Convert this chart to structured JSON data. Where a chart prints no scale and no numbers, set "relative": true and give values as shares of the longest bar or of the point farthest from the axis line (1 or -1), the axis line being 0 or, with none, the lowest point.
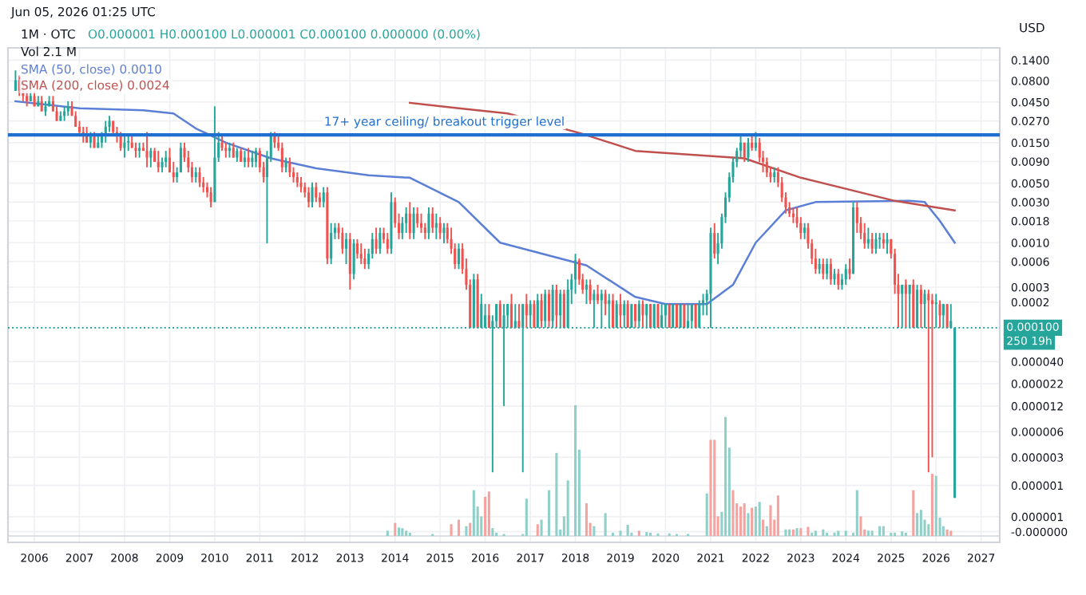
{
  "chart_data": [
    {
      "type": "candlestick",
      "title": "1M · OTC",
      "ylabel": "USD",
      "log": true,
      "grid": true,
      "legend": "top left",
      "annotations": [
        "O0.000001 H0.000100 L0.000001 C0.000100 0.000000 (0.00%)",
        "Jun 05, 2026 01:25 UTC",
        "250 19h",
        "Vol 2.1 M"
      ],
      "xlim": [
        "2005-06",
        "2027-06"
      ],
      "xticks": [
        "2006",
        "2007",
        "2008",
        "2009",
        "2010",
        "2011",
        "2012",
        "2013",
        "2014",
        "2015",
        "2016",
        "2017",
        "2018",
        "2019",
        "2020",
        "2021",
        "2022",
        "2023",
        "2024",
        "2025",
        "2026",
        "2027"
      ],
      "ylim": [
        3e-07,
        0.195
      ],
      "yticks": [
        {
          "value": 0.14,
          "label": "0.1400"
        },
        {
          "value": 0.08,
          "label": "0.0800"
        },
        {
          "value": 0.045,
          "label": "0.0450"
        },
        {
          "value": 0.027,
          "label": "0.0270"
        },
        {
          "value": 0.015,
          "label": "0.0150"
        },
        {
          "value": 0.009,
          "label": "0.0090"
        },
        {
          "value": 0.005,
          "label": "0.0050"
        },
        {
          "value": 0.003,
          "label": "0.0030"
        },
        {
          "value": 0.0018,
          "label": "0.0018"
        },
        {
          "value": 0.001,
          "label": "0.0010"
        },
        {
          "value": 0.0006,
          "label": "0.0006"
        },
        {
          "value": 0.0003,
          "label": "0.0003"
        },
        {
          "value": 0.0002,
          "label": "0.0002"
        },
        {
          "value": 4e-05,
          "label": "0.000040"
        },
        {
          "value": 2.2e-05,
          "label": "0.000022"
        },
        {
          "value": 1.2e-05,
          "label": "0.000012"
        },
        {
          "value": 6e-06,
          "label": "0.000006"
        },
        {
          "value": 3e-06,
          "label": "0.000003"
        },
        {
          "value": 1.4e-06,
          "label": "0.000001"
        },
        {
          "value": 6e-07,
          "label": "0.000001"
        },
        {
          "value": 4e-07,
          "label": "-0.000000"
        }
      ],
      "ref_lines": [
        {
          "axis": "y",
          "value": 0.0185,
          "label": "17+ year ceiling/ breakout trigger level",
          "color": "#1e6fd0",
          "line_style": "solid"
        },
        {
          "axis": "y",
          "value": 0.0001,
          "label": "0.000100",
          "color": "#26a69a",
          "line_style": "dotted"
        }
      ],
      "x": [
        "2005-08",
        "2005-09",
        "2005-10",
        "2005-11",
        "2005-12",
        "2006-01",
        "2006-02",
        "2006-03",
        "2006-04",
        "2006-05",
        "2006-06",
        "2006-07",
        "2006-08",
        "2006-09",
        "2006-10",
        "2006-11",
        "2006-12",
        "2007-01",
        "2007-02",
        "2007-03",
        "2007-04",
        "2007-05",
        "2007-06",
        "2007-07",
        "2007-08",
        "2007-09",
        "2007-10",
        "2007-11",
        "2007-12",
        "2008-01",
        "2008-02",
        "2008-03",
        "2008-04",
        "2008-05",
        "2008-06",
        "2008-07",
        "2008-08",
        "2008-09",
        "2008-10",
        "2008-11",
        "2008-12",
        "2009-01",
        "2009-02",
        "2009-03",
        "2009-04",
        "2009-05",
        "2009-06",
        "2009-07",
        "2009-08",
        "2009-09",
        "2009-10",
        "2009-11",
        "2009-12",
        "2010-01",
        "2010-02",
        "2010-03",
        "2010-04",
        "2010-05",
        "2010-06",
        "2010-07",
        "2010-08",
        "2010-09",
        "2010-10",
        "2010-11",
        "2010-12",
        "2011-01",
        "2011-02",
        "2011-03",
        "2011-04",
        "2011-05",
        "2011-06",
        "2011-07",
        "2011-08",
        "2011-09",
        "2011-10",
        "2011-11",
        "2011-12",
        "2012-01",
        "2012-02",
        "2012-03",
        "2012-04",
        "2012-05",
        "2012-06",
        "2012-07",
        "2012-08",
        "2012-09",
        "2012-10",
        "2012-11",
        "2012-12",
        "2013-01",
        "2013-02",
        "2013-03",
        "2013-04",
        "2013-05",
        "2013-06",
        "2013-07",
        "2013-08",
        "2013-09",
        "2013-10",
        "2013-11",
        "2013-12",
        "2014-01",
        "2014-02",
        "2014-03",
        "2014-04",
        "2014-05",
        "2014-06",
        "2014-07",
        "2014-08",
        "2014-09",
        "2014-10",
        "2014-11",
        "2014-12",
        "2015-01",
        "2015-02",
        "2015-03",
        "2015-04",
        "2015-05",
        "2015-06",
        "2015-07",
        "2015-08",
        "2015-09",
        "2015-10",
        "2015-11",
        "2015-12",
        "2016-01",
        "2016-02",
        "2016-03",
        "2016-04",
        "2016-05",
        "2016-06",
        "2016-07",
        "2016-08",
        "2016-09",
        "2016-10",
        "2016-11",
        "2016-12",
        "2017-01",
        "2017-02",
        "2017-03",
        "2017-04",
        "2017-05",
        "2017-06",
        "2017-07",
        "2017-08",
        "2017-09",
        "2017-10",
        "2017-11",
        "2017-12",
        "2018-01",
        "2018-02",
        "2018-03",
        "2018-04",
        "2018-05",
        "2018-06",
        "2018-07",
        "2018-08",
        "2018-09",
        "2018-10",
        "2018-11",
        "2018-12",
        "2019-01",
        "2019-02",
        "2019-03",
        "2019-04",
        "2019-05",
        "2019-06",
        "2019-07",
        "2019-08",
        "2019-09",
        "2019-10",
        "2019-11",
        "2019-12",
        "2020-01",
        "2020-02",
        "2020-03",
        "2020-04",
        "2020-05",
        "2020-06",
        "2020-07",
        "2020-08",
        "2020-09",
        "2020-10",
        "2020-11",
        "2020-12",
        "2021-01",
        "2021-02",
        "2021-03",
        "2021-04",
        "2021-05",
        "2021-06",
        "2021-07",
        "2021-08",
        "2021-09",
        "2021-10",
        "2021-11",
        "2021-12",
        "2022-01",
        "2022-02",
        "2022-03",
        "2022-04",
        "2022-05",
        "2022-06",
        "2022-07",
        "2022-08",
        "2022-09",
        "2022-10",
        "2022-11",
        "2022-12",
        "2023-01",
        "2023-02",
        "2023-03",
        "2023-04",
        "2023-05",
        "2023-06",
        "2023-07",
        "2023-08",
        "2023-09",
        "2023-10",
        "2023-11",
        "2023-12",
        "2024-01",
        "2024-02",
        "2024-03",
        "2024-04",
        "2024-05",
        "2024-06",
        "2024-07",
        "2024-08",
        "2024-09",
        "2024-10",
        "2024-11",
        "2024-12",
        "2025-01",
        "2025-02",
        "2025-03",
        "2025-04",
        "2025-05",
        "2025-06",
        "2025-07",
        "2025-08",
        "2025-09",
        "2025-10",
        "2025-11",
        "2025-12",
        "2026-01",
        "2026-02",
        "2026-03",
        "2026-04",
        "2026-05",
        "2026-06"
      ],
      "ohlc": [
        [
          0.061,
          0.106,
          0.061,
          0.081
        ],
        [
          0.081,
          0.092,
          0.053,
          0.061
        ],
        [
          0.061,
          0.081,
          0.046,
          0.053
        ],
        [
          0.053,
          0.061,
          0.04,
          0.046
        ],
        [
          0.046,
          0.061,
          0.046,
          0.053
        ],
        [
          0.053,
          0.061,
          0.04,
          0.04
        ],
        [
          0.04,
          0.053,
          0.04,
          0.046
        ],
        [
          0.046,
          0.053,
          0.035,
          0.035
        ],
        [
          0.035,
          0.046,
          0.031,
          0.04
        ],
        [
          0.04,
          0.053,
          0.04,
          0.046
        ],
        [
          0.046,
          0.053,
          0.035,
          0.035
        ],
        [
          0.035,
          0.04,
          0.027,
          0.027
        ],
        [
          0.027,
          0.035,
          0.027,
          0.031
        ],
        [
          0.031,
          0.04,
          0.027,
          0.035
        ],
        [
          0.035,
          0.046,
          0.031,
          0.04
        ],
        [
          0.04,
          0.046,
          0.031,
          0.031
        ],
        [
          0.031,
          0.035,
          0.023,
          0.023
        ],
        [
          0.023,
          0.027,
          0.018,
          0.02
        ],
        [
          0.02,
          0.023,
          0.015,
          0.018
        ],
        [
          0.018,
          0.023,
          0.015,
          0.015
        ],
        [
          0.015,
          0.02,
          0.013,
          0.018
        ],
        [
          0.018,
          0.02,
          0.013,
          0.013
        ],
        [
          0.013,
          0.018,
          0.013,
          0.015
        ],
        [
          0.015,
          0.02,
          0.013,
          0.018
        ],
        [
          0.018,
          0.027,
          0.015,
          0.023
        ],
        [
          0.023,
          0.031,
          0.02,
          0.027
        ],
        [
          0.027,
          0.027,
          0.018,
          0.02
        ],
        [
          0.02,
          0.023,
          0.015,
          0.018
        ],
        [
          0.018,
          0.02,
          0.012,
          0.013
        ],
        [
          0.013,
          0.018,
          0.01,
          0.015
        ],
        [
          0.015,
          0.018,
          0.012,
          0.015
        ],
        [
          0.015,
          0.018,
          0.013,
          0.013
        ],
        [
          0.013,
          0.015,
          0.01,
          0.012
        ],
        [
          0.012,
          0.015,
          0.01,
          0.013
        ],
        [
          0.013,
          0.015,
          0.012,
          0.012
        ],
        [
          0.012,
          0.02,
          0.0077,
          0.01
        ],
        [
          0.01,
          0.013,
          0.0077,
          0.012
        ],
        [
          0.012,
          0.013,
          0.0089,
          0.0089
        ],
        [
          0.0089,
          0.012,
          0.0067,
          0.0077
        ],
        [
          0.0077,
          0.01,
          0.0067,
          0.0089
        ],
        [
          0.0089,
          0.012,
          0.0077,
          0.01
        ],
        [
          0.01,
          0.013,
          0.0067,
          0.0067
        ],
        [
          0.0067,
          0.0089,
          0.0051,
          0.0059
        ],
        [
          0.0059,
          0.0077,
          0.0051,
          0.0067
        ],
        [
          0.0067,
          0.015,
          0.0067,
          0.013
        ],
        [
          0.013,
          0.015,
          0.0089,
          0.01
        ],
        [
          0.01,
          0.012,
          0.0067,
          0.0077
        ],
        [
          0.0077,
          0.0089,
          0.0051,
          0.0059
        ],
        [
          0.0059,
          0.0077,
          0.0051,
          0.0067
        ],
        [
          0.0067,
          0.0077,
          0.0045,
          0.0051
        ],
        [
          0.0051,
          0.0059,
          0.0039,
          0.0045
        ],
        [
          0.0045,
          0.0051,
          0.0034,
          0.0039
        ],
        [
          0.0039,
          0.0045,
          0.0026,
          0.003
        ],
        [
          0.003,
          0.04,
          0.003,
          0.01
        ],
        [
          0.01,
          0.02,
          0.0089,
          0.015
        ],
        [
          0.015,
          0.018,
          0.012,
          0.013
        ],
        [
          0.013,
          0.015,
          0.01,
          0.012
        ],
        [
          0.012,
          0.015,
          0.01,
          0.013
        ],
        [
          0.013,
          0.015,
          0.01,
          0.01
        ],
        [
          0.01,
          0.013,
          0.0089,
          0.012
        ],
        [
          0.012,
          0.013,
          0.0089,
          0.0089
        ],
        [
          0.0089,
          0.012,
          0.0077,
          0.01
        ],
        [
          0.01,
          0.013,
          0.0077,
          0.0089
        ],
        [
          0.0089,
          0.012,
          0.0077,
          0.01
        ],
        [
          0.0089,
          0.013,
          0.0077,
          0.012
        ],
        [
          0.012,
          0.013,
          0.0067,
          0.0077
        ],
        [
          0.0077,
          0.0089,
          0.0051,
          0.0059
        ],
        [
          0.0059,
          0.012,
          0.00098,
          0.01
        ],
        [
          0.01,
          0.02,
          0.0089,
          0.018
        ],
        [
          0.018,
          0.02,
          0.013,
          0.015
        ],
        [
          0.015,
          0.018,
          0.012,
          0.013
        ],
        [
          0.013,
          0.015,
          0.0067,
          0.0077
        ],
        [
          0.0077,
          0.01,
          0.0067,
          0.0089
        ],
        [
          0.0089,
          0.01,
          0.0059,
          0.0067
        ],
        [
          0.0067,
          0.0077,
          0.0051,
          0.0059
        ],
        [
          0.0059,
          0.0067,
          0.0045,
          0.0051
        ],
        [
          0.0051,
          0.0059,
          0.0039,
          0.0045
        ],
        [
          0.0045,
          0.0051,
          0.0034,
          0.0039
        ],
        [
          0.0039,
          0.0045,
          0.0026,
          0.003
        ],
        [
          0.003,
          0.0051,
          0.0026,
          0.0045
        ],
        [
          0.0045,
          0.0051,
          0.003,
          0.0034
        ],
        [
          0.0034,
          0.0039,
          0.0026,
          0.003
        ],
        [
          0.003,
          0.0045,
          0.0026,
          0.0039
        ],
        [
          0.0039,
          0.0045,
          0.00056,
          0.00065
        ],
        [
          0.00065,
          0.0017,
          0.00056,
          0.0013
        ],
        [
          0.0013,
          0.0017,
          0.0011,
          0.0015
        ],
        [
          0.0015,
          0.0017,
          0.0011,
          0.0013
        ],
        [
          0.0013,
          0.0015,
          0.00074,
          0.00085
        ],
        [
          0.00085,
          0.0013,
          0.00056,
          0.0011
        ],
        [
          0.0011,
          0.0013,
          0.00028,
          0.00043
        ],
        [
          0.00043,
          0.0011,
          0.00037,
          0.00098
        ],
        [
          0.00098,
          0.0011,
          0.00065,
          0.00074
        ],
        [
          0.00074,
          0.00098,
          0.00056,
          0.00065
        ],
        [
          0.00065,
          0.00085,
          0.00049,
          0.00056
        ],
        [
          0.00056,
          0.00085,
          0.00049,
          0.00074
        ],
        [
          0.00074,
          0.0013,
          0.00065,
          0.0011
        ],
        [
          0.0011,
          0.0015,
          0.00074,
          0.00085
        ],
        [
          0.00085,
          0.0015,
          0.00074,
          0.0013
        ],
        [
          0.0013,
          0.0015,
          0.00098,
          0.0011
        ],
        [
          0.0011,
          0.0013,
          0.00074,
          0.00085
        ],
        [
          0.00085,
          0.0039,
          0.00074,
          0.003
        ],
        [
          0.003,
          0.0034,
          0.0015,
          0.0017
        ],
        [
          0.0017,
          0.0022,
          0.0011,
          0.0013
        ],
        [
          0.0013,
          0.002,
          0.0011,
          0.0017
        ],
        [
          0.0017,
          0.0026,
          0.0013,
          0.0022
        ],
        [
          0.0022,
          0.003,
          0.0011,
          0.0013
        ],
        [
          0.0013,
          0.0026,
          0.0011,
          0.0022
        ],
        [
          0.0022,
          0.0026,
          0.0015,
          0.0017
        ],
        [
          0.0017,
          0.0022,
          0.0013,
          0.0015
        ],
        [
          0.0015,
          0.0017,
          0.0011,
          0.0013
        ],
        [
          0.0013,
          0.0026,
          0.0011,
          0.0022
        ],
        [
          0.0022,
          0.0026,
          0.0013,
          0.0015
        ],
        [
          0.0015,
          0.0022,
          0.0011,
          0.0017
        ],
        [
          0.0017,
          0.002,
          0.0011,
          0.0013
        ],
        [
          0.0013,
          0.0017,
          0.00098,
          0.0015
        ],
        [
          0.0015,
          0.0017,
          0.00098,
          0.0011
        ],
        [
          0.0011,
          0.0015,
          0.00074,
          0.00085
        ],
        [
          0.00085,
          0.00098,
          0.00049,
          0.00056
        ],
        [
          0.00056,
          0.00098,
          0.00049,
          0.00085
        ],
        [
          0.00085,
          0.00098,
          0.00043,
          0.00049
        ],
        [
          0.00049,
          0.00065,
          0.00028,
          0.00032
        ],
        [
          0.00032,
          0.00037,
          0.0001,
          0.0001
        ],
        [
          0.0001,
          0.00043,
          0.0001,
          0.00037
        ],
        [
          0.00037,
          0.00043,
          0.0001,
          0.0001
        ],
        [
          0.0001,
          0.00025,
          0.0001,
          0.00019
        ],
        [
          0.0001,
          0.00019,
          0.0001,
          0.00014
        ],
        [
          0.00014,
          0.00019,
          0.0001,
          0.0001
        ],
        [
          0.0001,
          0.00014,
          2e-06,
          0.00012
        ],
        [
          0.00012,
          0.00019,
          0.0001,
          0.00019
        ],
        [
          0.00019,
          0.00021,
          0.0001,
          0.0001
        ],
        [
          0.0001,
          0.00019,
          1.2e-05,
          0.00014
        ],
        [
          0.00014,
          0.00019,
          0.0001,
          0.00019
        ],
        [
          0.00019,
          0.00025,
          0.0001,
          0.0001
        ],
        [
          0.0001,
          0.00019,
          0.0001,
          0.00012
        ],
        [
          0.00012,
          0.00019,
          0.0001,
          0.0001
        ],
        [
          0.0001,
          0.00019,
          2e-06,
          0.00019
        ],
        [
          0.00019,
          0.00025,
          0.0001,
          0.00014
        ],
        [
          0.00014,
          0.00021,
          0.0001,
          0.00019
        ],
        [
          0.00019,
          0.00021,
          0.0001,
          0.0001
        ],
        [
          0.0001,
          0.00025,
          0.0001,
          0.00021
        ],
        [
          0.00021,
          0.00025,
          0.0001,
          0.00012
        ],
        [
          0.00012,
          0.00028,
          0.0001,
          0.00025
        ],
        [
          0.00025,
          0.00028,
          0.0001,
          0.00012
        ],
        [
          0.00012,
          0.00032,
          0.0001,
          0.00028
        ],
        [
          0.00028,
          0.00032,
          0.0001,
          0.00014
        ],
        [
          0.00014,
          0.00028,
          0.0001,
          0.00025
        ],
        [
          0.00025,
          0.00028,
          0.0001,
          0.0001
        ],
        [
          0.0001,
          0.00037,
          0.0001,
          0.00028
        ],
        [
          0.00028,
          0.00043,
          0.00019,
          0.00037
        ],
        [
          0.00037,
          0.00074,
          0.00025,
          0.00062
        ],
        [
          0.00062,
          0.00065,
          0.00032,
          0.00037
        ],
        [
          0.00037,
          0.00043,
          0.00025,
          0.00028
        ],
        [
          0.00028,
          0.00037,
          0.00019,
          0.00032
        ],
        [
          0.00032,
          0.00037,
          0.00019,
          0.00021
        ],
        [
          0.00021,
          0.00028,
          0.0001,
          0.00025
        ],
        [
          0.00025,
          0.00032,
          0.00019,
          0.00021
        ],
        [
          0.00021,
          0.00028,
          0.0001,
          0.00025
        ],
        [
          0.00025,
          0.00028,
          0.00014,
          0.00019
        ],
        [
          0.00019,
          0.00025,
          0.0001,
          0.00021
        ],
        [
          0.00021,
          0.00025,
          0.0001,
          0.0001
        ],
        [
          0.0001,
          0.00021,
          0.0001,
          0.00019
        ],
        [
          0.00019,
          0.00025,
          0.0001,
          0.00014
        ],
        [
          0.00014,
          0.00021,
          0.0001,
          0.00019
        ],
        [
          0.00019,
          0.00021,
          0.0001,
          0.0001
        ],
        [
          0.0001,
          0.00019,
          0.0001,
          0.00019
        ],
        [
          0.00019,
          0.00019,
          0.0001,
          0.00012
        ],
        [
          0.00012,
          0.00021,
          0.0001,
          0.00019
        ],
        [
          0.00019,
          0.00021,
          0.0001,
          0.00014
        ],
        [
          0.00014,
          0.00019,
          0.0001,
          0.00019
        ],
        [
          0.00019,
          0.00019,
          0.0001,
          0.0001
        ],
        [
          0.0001,
          0.00019,
          0.0001,
          0.00019
        ],
        [
          0.00019,
          0.00019,
          0.0001,
          0.0001
        ],
        [
          0.0001,
          0.00019,
          0.0001,
          0.00014
        ],
        [
          0.00014,
          0.00019,
          0.0001,
          0.00019
        ],
        [
          0.00019,
          0.00019,
          0.0001,
          0.0001
        ],
        [
          0.0001,
          0.00019,
          0.0001,
          0.00019
        ],
        [
          0.00019,
          0.00019,
          0.0001,
          0.0001
        ],
        [
          0.0001,
          0.00019,
          0.0001,
          0.00019
        ],
        [
          0.00019,
          0.00019,
          0.0001,
          0.0001
        ],
        [
          0.0001,
          0.00019,
          0.0001,
          0.00012
        ],
        [
          0.00012,
          0.00019,
          0.0001,
          0.00019
        ],
        [
          0.00019,
          0.00019,
          0.0001,
          0.0001
        ],
        [
          0.0001,
          0.00021,
          0.0001,
          0.00019
        ],
        [
          0.00019,
          0.00025,
          0.00014,
          0.00021
        ],
        [
          0.00021,
          0.00028,
          0.00014,
          0.00025
        ],
        [
          0.00025,
          0.0015,
          0.0001,
          0.0013
        ],
        [
          0.0013,
          0.0017,
          0.00065,
          0.00074
        ],
        [
          0.00074,
          0.0013,
          0.00056,
          0.00098
        ],
        [
          0.00098,
          0.0022,
          0.00085,
          0.002
        ],
        [
          0.002,
          0.0039,
          0.0017,
          0.0034
        ],
        [
          0.0034,
          0.0067,
          0.003,
          0.0059
        ],
        [
          0.0059,
          0.01,
          0.0051,
          0.0089
        ],
        [
          0.0089,
          0.013,
          0.0077,
          0.012
        ],
        [
          0.012,
          0.018,
          0.01,
          0.015
        ],
        [
          0.015,
          0.015,
          0.0089,
          0.01
        ],
        [
          0.01,
          0.017,
          0.0089,
          0.015
        ],
        [
          0.015,
          0.018,
          0.012,
          0.013
        ],
        [
          0.013,
          0.02,
          0.012,
          0.015
        ],
        [
          0.015,
          0.017,
          0.0089,
          0.01
        ],
        [
          0.01,
          0.012,
          0.0067,
          0.0089
        ],
        [
          0.0089,
          0.01,
          0.0059,
          0.0067
        ],
        [
          0.0067,
          0.0077,
          0.0051,
          0.0059
        ],
        [
          0.0059,
          0.0077,
          0.0051,
          0.0067
        ],
        [
          0.0067,
          0.0077,
          0.0045,
          0.0051
        ],
        [
          0.0051,
          0.0059,
          0.003,
          0.0034
        ],
        [
          0.0034,
          0.0039,
          0.0022,
          0.0026
        ],
        [
          0.0026,
          0.003,
          0.002,
          0.0022
        ],
        [
          0.0022,
          0.0026,
          0.0017,
          0.002
        ],
        [
          0.002,
          0.0026,
          0.0015,
          0.0017
        ],
        [
          0.0017,
          0.002,
          0.0011,
          0.0013
        ],
        [
          0.0013,
          0.0017,
          0.0011,
          0.0015
        ],
        [
          0.0015,
          0.0017,
          0.00085,
          0.00098
        ],
        [
          0.00098,
          0.0011,
          0.00056,
          0.00065
        ],
        [
          0.00065,
          0.00085,
          0.00043,
          0.00049
        ],
        [
          0.00049,
          0.00065,
          0.00043,
          0.00056
        ],
        [
          0.00056,
          0.00065,
          0.00037,
          0.00043
        ],
        [
          0.00043,
          0.00065,
          0.00037,
          0.00056
        ],
        [
          0.00056,
          0.00065,
          0.00032,
          0.00037
        ],
        [
          0.00037,
          0.00049,
          0.00032,
          0.00043
        ],
        [
          0.00043,
          0.00049,
          0.00028,
          0.00032
        ],
        [
          0.00032,
          0.00043,
          0.00028,
          0.00037
        ],
        [
          0.00037,
          0.00056,
          0.00032,
          0.00049
        ],
        [
          0.00049,
          0.00065,
          0.00037,
          0.00043
        ],
        [
          0.00043,
          0.003,
          0.00043,
          0.0026
        ],
        [
          0.0026,
          0.003,
          0.0013,
          0.0017
        ],
        [
          0.0017,
          0.002,
          0.0011,
          0.0013
        ],
        [
          0.0013,
          0.0017,
          0.00085,
          0.00098
        ],
        [
          0.00098,
          0.0015,
          0.00085,
          0.0011
        ],
        [
          0.0011,
          0.0013,
          0.00074,
          0.00085
        ],
        [
          0.00085,
          0.0013,
          0.00074,
          0.0011
        ],
        [
          0.0011,
          0.0013,
          0.00085,
          0.0011
        ],
        [
          0.0011,
          0.0013,
          0.00085,
          0.00098
        ],
        [
          0.00098,
          0.0013,
          0.00074,
          0.0011
        ],
        [
          0.0011,
          0.0011,
          0.00065,
          0.00074
        ],
        [
          0.00074,
          0.00085,
          0.00025,
          0.00032
        ],
        [
          0.00032,
          0.00043,
          0.0001,
          0.00025
        ],
        [
          0.00025,
          0.00032,
          0.0001,
          0.00032
        ],
        [
          0.00032,
          0.00037,
          0.0001,
          0.00025
        ],
        [
          0.00025,
          0.00032,
          0.0001,
          0.00032
        ],
        [
          0.00032,
          0.00037,
          0.0001,
          0.0001
        ],
        [
          0.0001,
          0.00032,
          0.0001,
          0.00028
        ],
        [
          0.00028,
          0.00032,
          0.0001,
          0.00019
        ],
        [
          0.00019,
          0.00028,
          0.0001,
          0.00025
        ],
        [
          0.00025,
          0.00028,
          2e-06,
          0.00021
        ],
        [
          0.00021,
          0.00025,
          3e-06,
          0.00019
        ],
        [
          0.00019,
          0.00025,
          0.0001,
          0.00019
        ],
        [
          0.00019,
          0.00021,
          0.0001,
          0.00014
        ],
        [
          0.00014,
          0.00019,
          0.0001,
          0.00019
        ],
        [
          0.00019,
          0.00019,
          0.0001,
          0.0001
        ],
        [
          0.0001,
          0.00019,
          0.0001,
          0.00012
        ],
        [
          1e-06,
          0.0001,
          1e-06,
          0.0001
        ]
      ],
      "series": [
        {
          "type": "line",
          "name": "SMA (50, close) 0.0010",
          "color": "#5b7fd6",
          "x": [
            "2005-08",
            "2007-01",
            "2008-06",
            "2009-02",
            "2009-08",
            "2010-04",
            "2011-04",
            "2012-04",
            "2013-06",
            "2014-05",
            "2015-06",
            "2016-05",
            "2018-04",
            "2019-05",
            "2020-01",
            "2020-12",
            "2021-07",
            "2022-01",
            "2022-09",
            "2023-05",
            "2025-06",
            "2025-10",
            "2026-02",
            "2026-06"
          ],
          "values": [
            0.046,
            0.038,
            0.036,
            0.033,
            0.022,
            0.015,
            0.0098,
            0.0075,
            0.0062,
            0.0058,
            0.003,
            0.001,
            0.00054,
            0.00023,
            0.00019,
            0.00019,
            0.00032,
            0.001,
            0.0024,
            0.003,
            0.0031,
            0.003,
            0.0018,
            0.001
          ]
        },
        {
          "type": "line",
          "name": "SMA (200, close) 0.0024",
          "color": "#c0504d",
          "x": [
            "2014-05",
            "2015-06",
            "2016-07",
            "2018-03",
            "2019-05",
            "2021-10",
            "2023-01",
            "2025-02",
            "2026-06"
          ],
          "values": [
            0.044,
            0.038,
            0.033,
            0.019,
            0.012,
            0.0098,
            0.0058,
            0.0031,
            0.0024
          ]
        }
      ]
    },
    {
      "type": "bar",
      "relative": true,
      "tick_labels": false,
      "xlim": [
        "2005-06",
        "2027-06"
      ],
      "xticks": [
        "2006",
        "2007",
        "2008",
        "2009",
        "2010",
        "2011",
        "2012",
        "2013",
        "2014",
        "2015",
        "2016",
        "2017",
        "2018",
        "2019",
        "2020",
        "2021",
        "2022",
        "2023",
        "2024",
        "2025",
        "2026",
        "2027"
      ],
      "x": [
        "2013-11",
        "2014-01",
        "2014-02",
        "2014-03",
        "2014-04",
        "2014-05",
        "2014-11",
        "2015-04",
        "2015-06",
        "2015-08",
        "2015-09",
        "2015-10",
        "2015-11",
        "2015-12",
        "2016-01",
        "2016-02",
        "2016-03",
        "2016-04",
        "2016-06",
        "2016-11",
        "2016-12",
        "2017-03",
        "2017-04",
        "2017-06",
        "2017-08",
        "2017-09",
        "2017-10",
        "2017-11",
        "2018-01",
        "2018-02",
        "2018-04",
        "2018-05",
        "2018-06",
        "2018-09",
        "2018-11",
        "2019-01",
        "2019-03",
        "2019-04",
        "2019-06",
        "2019-08",
        "2019-09",
        "2019-11",
        "2020-02",
        "2020-04",
        "2020-07",
        "2020-12",
        "2021-01",
        "2021-02",
        "2021-03",
        "2021-04",
        "2021-05",
        "2021-06",
        "2021-07",
        "2021-08",
        "2021-09",
        "2021-10",
        "2021-11",
        "2021-12",
        "2022-01",
        "2022-02",
        "2022-03",
        "2022-04",
        "2022-05",
        "2022-06",
        "2022-07",
        "2022-09",
        "2022-10",
        "2022-11",
        "2022-12",
        "2023-01",
        "2023-03",
        "2023-04",
        "2023-05",
        "2023-07",
        "2023-08",
        "2023-10",
        "2023-11",
        "2024-01",
        "2024-03",
        "2024-04",
        "2024-05",
        "2024-06",
        "2024-07",
        "2024-08",
        "2024-10",
        "2024-11",
        "2025-01",
        "2025-02",
        "2025-04",
        "2025-05",
        "2025-07",
        "2025-08",
        "2025-09",
        "2025-10",
        "2025-11",
        "2025-12",
        "2026-01",
        "2026-02",
        "2026-03",
        "2026-04",
        "2026-05"
      ],
      "values": [
        0.04,
        0.1,
        0.065,
        0.06,
        0.04,
        0.025,
        0.015,
        0.09,
        0.125,
        0.075,
        0.1,
        0.35,
        0.225,
        0.15,
        0.3,
        0.34,
        0.06,
        0.025,
        0.015,
        0.015,
        0.285,
        0.09,
        0.125,
        0.35,
        0.635,
        0.05,
        0.15,
        0.425,
        1,
        0.66,
        0.25,
        0.1,
        0.075,
        0.175,
        0.025,
        0.04,
        0.085,
        0.025,
        0.04,
        0.03,
        0.025,
        0.02,
        0.02,
        0.015,
        0.015,
        0.325,
        0.735,
        0.735,
        0.15,
        0.185,
        0.91,
        0.675,
        0.35,
        0.25,
        0.225,
        0.25,
        0.175,
        0.215,
        0.225,
        0.26,
        0.125,
        0.075,
        0.235,
        0.125,
        0.31,
        0.05,
        0.05,
        0.05,
        0.06,
        0.06,
        0.07,
        0.025,
        0.04,
        0.05,
        0.025,
        0.025,
        0.04,
        0.04,
        0.025,
        0.35,
        0.15,
        0.05,
        0.04,
        0.04,
        0.075,
        0.075,
        0.025,
        0.025,
        0.035,
        0.025,
        0.35,
        0.175,
        0.2,
        0.125,
        0.09,
        0.475,
        0.46,
        0.14,
        0.075,
        0.05,
        0.04
      ],
      "colors": [
        "#8fd1c9",
        "#f5a3a0",
        "#8fd1c9",
        "#8fd1c9",
        "#8fd1c9",
        "#8fd1c9",
        "#8fd1c9",
        "#f5a3a0",
        "#f5a3a0",
        "#8fd1c9",
        "#f5a3a0",
        "#8fd1c9",
        "#8fd1c9",
        "#8fd1c9",
        "#f5a3a0",
        "#f5a3a0",
        "#8fd1c9",
        "#8fd1c9",
        "#8fd1c9",
        "#8fd1c9",
        "#8fd1c9",
        "#f5a3a0",
        "#8fd1c9",
        "#8fd1c9",
        "#8fd1c9",
        "#8fd1c9",
        "#8fd1c9",
        "#8fd1c9",
        "#8fd1c9",
        "#8fd1c9",
        "#f5a3a0",
        "#f5a3a0",
        "#8fd1c9",
        "#8fd1c9",
        "#8fd1c9",
        "#8fd1c9",
        "#8fd1c9",
        "#8fd1c9",
        "#f5a3a0",
        "#8fd1c9",
        "#8fd1c9",
        "#8fd1c9",
        "#8fd1c9",
        "#8fd1c9",
        "#8fd1c9",
        "#8fd1c9",
        "#f5a3a0",
        "#f5a3a0",
        "#f5a3a0",
        "#8fd1c9",
        "#8fd1c9",
        "#8fd1c9",
        "#f5a3a0",
        "#f5a3a0",
        "#f5a3a0",
        "#f5a3a0",
        "#8fd1c9",
        "#f5a3a0",
        "#8fd1c9",
        "#8fd1c9",
        "#f5a3a0",
        "#8fd1c9",
        "#f5a3a0",
        "#f5a3a0",
        "#f5a3a0",
        "#8fd1c9",
        "#8fd1c9",
        "#f5a3a0",
        "#8fd1c9",
        "#f5a3a0",
        "#f5a3a0",
        "#8fd1c9",
        "#8fd1c9",
        "#8fd1c9",
        "#8fd1c9",
        "#8fd1c9",
        "#8fd1c9",
        "#8fd1c9",
        "#8fd1c9",
        "#8fd1c9",
        "#f5a3a0",
        "#f5a3a0",
        "#8fd1c9",
        "#8fd1c9",
        "#8fd1c9",
        "#8fd1c9",
        "#8fd1c9",
        "#8fd1c9",
        "#8fd1c9",
        "#8fd1c9",
        "#f5a3a0",
        "#8fd1c9",
        "#8fd1c9",
        "#8fd1c9",
        "#8fd1c9",
        "#f5a3a0",
        "#8fd1c9",
        "#8fd1c9",
        "#8fd1c9",
        "#f5a3a0",
        "#f5a3a0"
      ]
    }
  ]
}
